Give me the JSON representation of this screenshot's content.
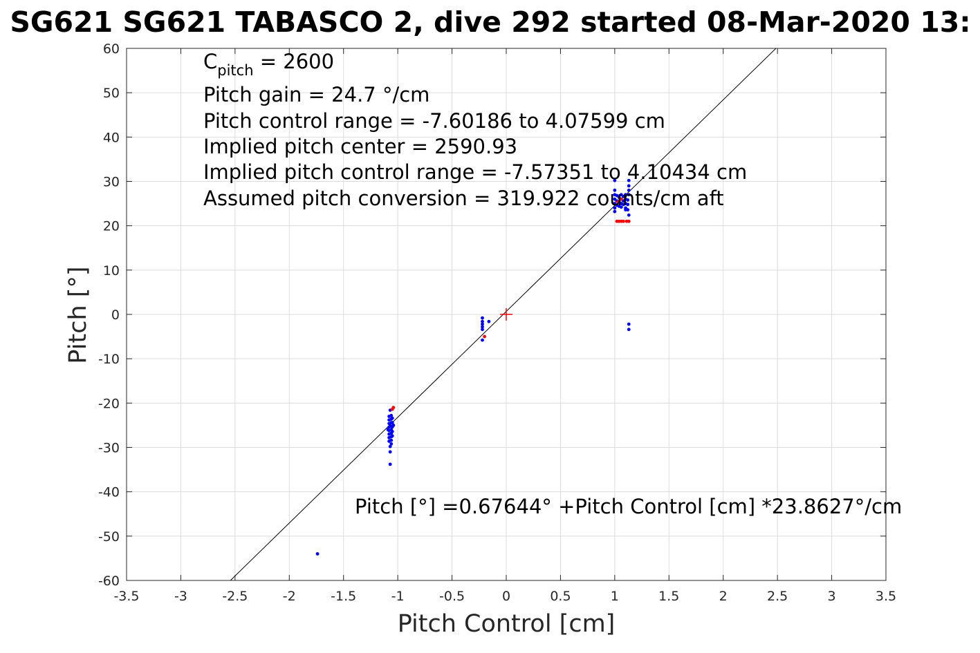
{
  "chart_data": {
    "type": "scatter",
    "title": "SG621 SG621 TABASCO 2, dive 292 started 08-Mar-2020 13:",
    "xlabel": "Pitch Control [cm]",
    "ylabel": "Pitch [°]",
    "xlim": [
      -3.5,
      3.5
    ],
    "ylim": [
      -60,
      60
    ],
    "xticks": [
      "-3.5",
      "-3",
      "-2.5",
      "-2",
      "-1.5",
      "-1",
      "-0.5",
      "0",
      "0.5",
      "1",
      "1.5",
      "2",
      "2.5",
      "3",
      "3.5"
    ],
    "yticks": [
      "60",
      "50",
      "40",
      "30",
      "20",
      "10",
      "0",
      "-10",
      "-20",
      "-30",
      "-40",
      "-50",
      "-60"
    ],
    "grid": true,
    "annotations": {
      "c_pitch_prefix": "C",
      "c_pitch_sub": "pitch",
      "c_pitch_value": " = 2600",
      "pitch_gain": "Pitch gain = 24.7 °/cm",
      "pitch_control_range": "Pitch control range = -7.60186 to 4.07599 cm",
      "implied_pitch_center": "Implied pitch center = 2590.93",
      "implied_pitch_control_range": "Implied pitch control range = -7.57351 to 4.10434 cm",
      "assumed_pitch_conversion": "Assumed pitch conversion = 319.922 counts/cm aft",
      "fit_equation": "Pitch [°] =0.67644° +Pitch Control [cm] *23.8627°/cm"
    },
    "fit_line": {
      "intercept": 0.67644,
      "slope": 23.8627
    },
    "center_marker": {
      "x": 0,
      "y": 0,
      "color": "#ff0000"
    },
    "series": [
      {
        "color": "#0000ff",
        "points": [
          [
            -1.08,
            -23.0
          ],
          [
            -1.08,
            -23.8
          ],
          [
            -1.08,
            -24.6
          ],
          [
            -1.08,
            -25.4
          ],
          [
            -1.08,
            -26.2
          ],
          [
            -1.08,
            -27.0
          ],
          [
            -1.08,
            -27.8
          ],
          [
            -1.08,
            -28.6
          ],
          [
            -1.06,
            -22.8
          ],
          [
            -1.06,
            -23.6
          ],
          [
            -1.06,
            -24.4
          ],
          [
            -1.06,
            -25.2
          ],
          [
            -1.06,
            -26.0
          ],
          [
            -1.06,
            -26.8
          ],
          [
            -1.06,
            -27.6
          ],
          [
            -1.06,
            -28.4
          ],
          [
            -1.06,
            -29.2
          ],
          [
            -1.05,
            -23.4
          ],
          [
            -1.05,
            -24.4
          ],
          [
            -1.05,
            -25.4
          ],
          [
            -1.05,
            -26.4
          ],
          [
            -1.05,
            -27.4
          ],
          [
            -1.07,
            -21.6
          ],
          [
            -1.07,
            -29.8
          ],
          [
            -1.07,
            -31.0
          ],
          [
            -1.07,
            -33.8
          ],
          [
            -1.09,
            -26.0
          ],
          [
            -1.04,
            -25.0
          ],
          [
            -1.74,
            -54.0
          ],
          [
            -0.22,
            -0.8
          ],
          [
            -0.22,
            -1.6
          ],
          [
            -0.22,
            -2.2
          ],
          [
            -0.22,
            -2.8
          ],
          [
            -0.22,
            -3.4
          ],
          [
            -0.22,
            -5.8
          ],
          [
            -0.16,
            -1.6
          ],
          [
            1.0,
            30.2
          ],
          [
            1.0,
            28.0
          ],
          [
            1.0,
            27.0
          ],
          [
            1.0,
            26.0
          ],
          [
            1.0,
            25.0
          ],
          [
            1.0,
            24.0
          ],
          [
            1.0,
            23.2
          ],
          [
            1.02,
            26.8
          ],
          [
            1.02,
            25.6
          ],
          [
            1.02,
            24.6
          ],
          [
            1.04,
            26.4
          ],
          [
            1.04,
            25.4
          ],
          [
            1.04,
            24.4
          ],
          [
            1.06,
            27.0
          ],
          [
            1.06,
            26.0
          ],
          [
            1.06,
            25.0
          ],
          [
            1.06,
            24.2
          ],
          [
            1.08,
            26.6
          ],
          [
            1.08,
            25.6
          ],
          [
            1.08,
            24.8
          ],
          [
            1.1,
            27.0
          ],
          [
            1.1,
            26.0
          ],
          [
            1.1,
            25.0
          ],
          [
            1.1,
            24.0
          ],
          [
            1.1,
            23.6
          ],
          [
            1.12,
            25.8
          ],
          [
            1.12,
            24.8
          ],
          [
            1.12,
            23.6
          ],
          [
            1.13,
            30.2
          ],
          [
            1.13,
            29.0
          ],
          [
            1.13,
            28.0
          ],
          [
            1.13,
            27.0
          ],
          [
            1.13,
            22.4
          ],
          [
            1.13,
            -2.2
          ],
          [
            1.13,
            -3.4
          ]
        ]
      },
      {
        "color": "#ff0000",
        "points": [
          [
            -1.04,
            -21.0
          ],
          [
            -1.05,
            -21.4
          ],
          [
            -0.2,
            -5.0
          ],
          [
            1.02,
            21.0
          ],
          [
            1.04,
            21.0
          ],
          [
            1.06,
            21.0
          ],
          [
            1.08,
            21.0
          ],
          [
            1.11,
            21.0
          ],
          [
            1.13,
            21.0
          ],
          [
            1.06,
            26.0
          ],
          [
            1.03,
            25.4
          ]
        ]
      }
    ]
  }
}
